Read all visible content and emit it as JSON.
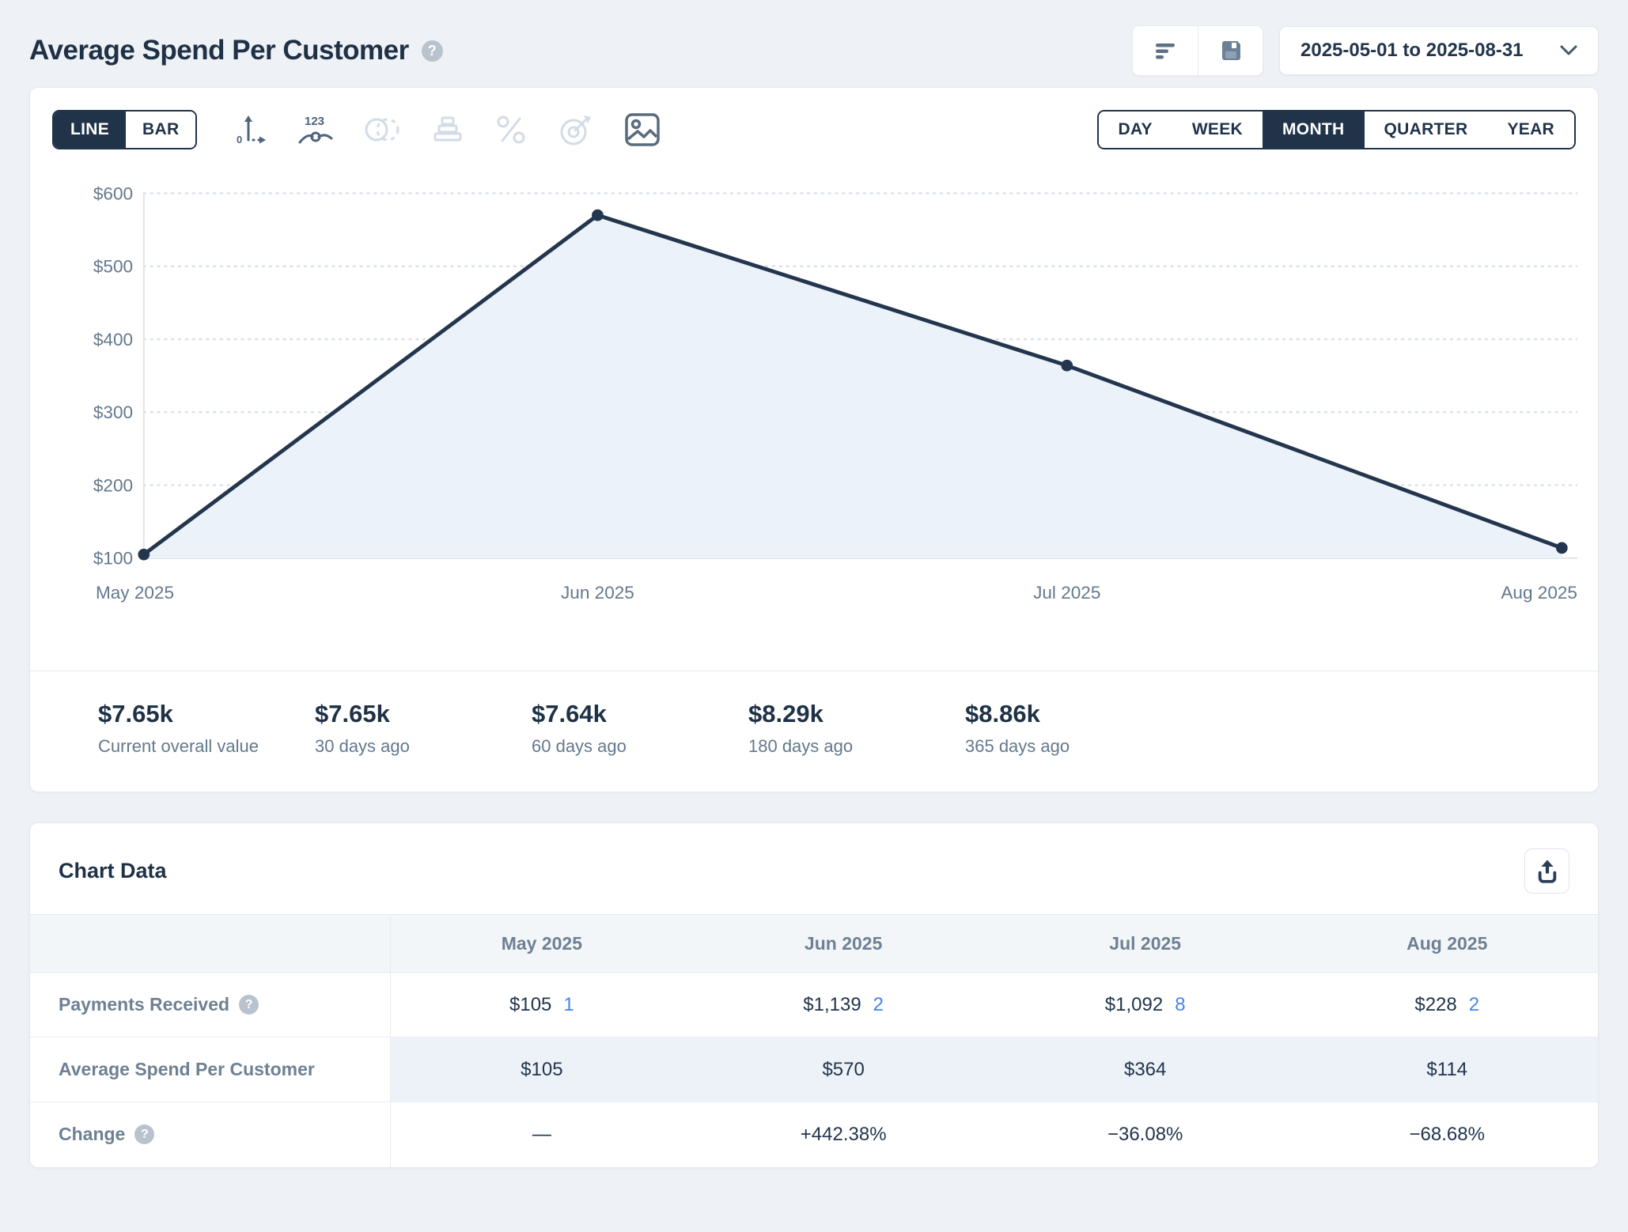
{
  "header": {
    "title": "Average Spend Per Customer",
    "date_range": "2025-05-01 to 2025-08-31"
  },
  "toolbar": {
    "chart_types": [
      "LINE",
      "BAR"
    ],
    "active_chart_type": "LINE",
    "icon_tools": [
      "axis-range",
      "value-labels",
      "compare-periods",
      "stacking",
      "percentage",
      "goal",
      "export-image"
    ],
    "granularities": [
      "DAY",
      "WEEK",
      "MONTH",
      "QUARTER",
      "YEAR"
    ],
    "active_granularity": "MONTH"
  },
  "chart_data": {
    "type": "line",
    "series_name": "Average Spend Per Customer",
    "categories": [
      "May 2025",
      "Jun 2025",
      "Jul 2025",
      "Aug 2025"
    ],
    "values": [
      105,
      570,
      364,
      114
    ],
    "ylim": [
      100,
      600
    ],
    "yticks": [
      100,
      200,
      300,
      400,
      500,
      600
    ],
    "ytick_prefix": "$",
    "grid": "dotted horizontal",
    "area_fill": true,
    "line_color": "#24364e",
    "fill_color": "#ecf2fa",
    "legend": "none"
  },
  "stats": {
    "items": [
      {
        "value": "$7.65k",
        "label": "Current overall value"
      },
      {
        "value": "$7.65k",
        "label": "30 days ago"
      },
      {
        "value": "$7.64k",
        "label": "60 days ago"
      },
      {
        "value": "$8.29k",
        "label": "180 days ago"
      },
      {
        "value": "$8.86k",
        "label": "365 days ago"
      }
    ]
  },
  "chart_table": {
    "title": "Chart Data",
    "columns": [
      "May 2025",
      "Jun 2025",
      "Jul 2025",
      "Aug 2025"
    ],
    "rows": {
      "payments": {
        "label": "Payments Received",
        "cells": [
          {
            "amount": "$105",
            "count": "1"
          },
          {
            "amount": "$1,139",
            "count": "2"
          },
          {
            "amount": "$1,092",
            "count": "8"
          },
          {
            "amount": "$228",
            "count": "2"
          }
        ]
      },
      "average": {
        "label": "Average Spend Per Customer",
        "cells": [
          {
            "amount": "$105"
          },
          {
            "amount": "$570"
          },
          {
            "amount": "$364"
          },
          {
            "amount": "$114"
          }
        ]
      },
      "change": {
        "label": "Change",
        "cells": [
          {
            "amount": "—"
          },
          {
            "amount": "+442.38%"
          },
          {
            "amount": "−36.08%"
          },
          {
            "amount": "−68.68%"
          }
        ]
      }
    }
  },
  "colors": {
    "accent_navy": "#203349",
    "positive_blue": "#4486e8",
    "negative_red": "#e4556a",
    "page_background": "#eef1f5"
  }
}
